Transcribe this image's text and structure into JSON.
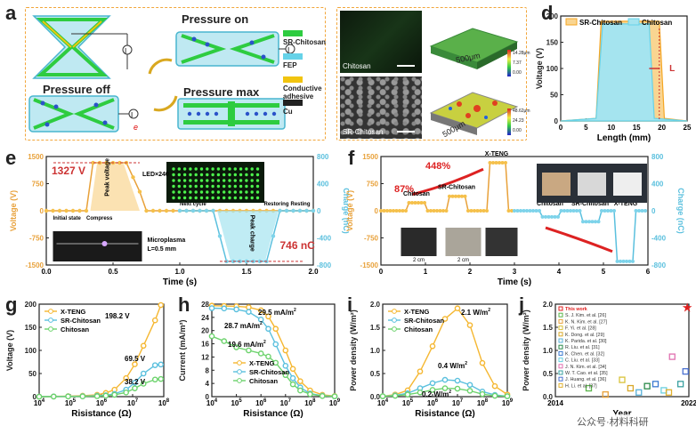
{
  "panel_letters": {
    "a": "a",
    "b": "b",
    "c": "c",
    "d": "d",
    "e": "e",
    "f": "f",
    "g": "g",
    "h": "h",
    "i": "i",
    "j": "j"
  },
  "a": {
    "pressure_on": "Pressure on",
    "pressure_off": "Pressure off",
    "pressure_max": "Pressure max",
    "e_symbol": "e",
    "legend": [
      {
        "label": "SR-Chitosan",
        "color": "#2ecc40"
      },
      {
        "label": "FEP",
        "color": "#66d2e8"
      },
      {
        "label": "Conductive adhesive",
        "color": "#f1c40f"
      },
      {
        "label": "Cu",
        "color": "#222"
      }
    ]
  },
  "b": {
    "label": "Chitosan",
    "scale": "500μm",
    "cbar": [
      "14.28μm",
      "7.37",
      "0.00"
    ]
  },
  "c": {
    "label": "SR-Chitosan",
    "scale": "500μm",
    "cbar": [
      "48.62μm",
      "24.23",
      "0.00"
    ]
  },
  "d": {
    "legend": [
      "SR-Chitosan",
      "Chitosan"
    ],
    "ylabel": "Voltage (V)",
    "xlabel": "Length (mm)",
    "marker": "L",
    "xticks": [
      "0",
      "5",
      "10",
      "15",
      "20",
      "25"
    ],
    "yticks": [
      "0",
      "50",
      "100",
      "150",
      "200"
    ],
    "colors": {
      "sr": "#f5a623",
      "ch": "#66d2e8"
    }
  },
  "e": {
    "annot_v": "1327 V",
    "annot_c": "746 nC",
    "peak_v": "Peak voltage",
    "peak_c": "Peak charge",
    "led": "LED×240",
    "initial": "Initial state",
    "compress": "Compress",
    "next": "Next cycle",
    "restoring": "Restoring",
    "resting": "Resting",
    "plasma": "Microplasma",
    "plasma_l": "L=0.5 mm",
    "ylabel": "Voltage (V)",
    "y2label": "Charge (nC)",
    "xlabel": "Time (s)",
    "yticks": [
      "1500",
      "750",
      "0",
      "-750",
      "-1500"
    ],
    "y2ticks": [
      "800",
      "400",
      "0",
      "-400",
      "-800"
    ],
    "xticks": [
      "0.0",
      "0.5",
      "1.0",
      "1.5",
      "2.0"
    ]
  },
  "f": {
    "p448": "448%",
    "p87": "87%",
    "labels_top": [
      "Chitosan",
      "SR-Chitosan",
      "X-TENG"
    ],
    "labels_bot": [
      "Chitosan",
      "SR-Chitosan",
      "X-TENG"
    ],
    "scale": "2 cm",
    "ylabel": "Voltage (V)",
    "y2label": "Charge (nC)",
    "xlabel": "Time (s)",
    "yticks": [
      "1500",
      "750",
      "0",
      "-750",
      "-1500"
    ],
    "y2ticks": [
      "800",
      "400",
      "0",
      "-400",
      "-800"
    ],
    "xticks": [
      "0",
      "1",
      "2",
      "3",
      "4",
      "5",
      "6"
    ]
  },
  "g": {
    "legend": [
      "X-TENG",
      "SR-Chitosan",
      "Chitosan"
    ],
    "annots": [
      "198.2 V",
      "69.5 V",
      "38.2 V"
    ],
    "ylabel": "Voltage (V)",
    "xlabel": "Risistance (Ω)",
    "yticks": [
      "0",
      "50",
      "100",
      "150",
      "200"
    ],
    "xticks": [
      "10",
      "10",
      "10",
      "10",
      "10"
    ],
    "xexp": [
      "4",
      "5",
      "6",
      "7",
      "8"
    ]
  },
  "h": {
    "legend": [
      "X-TENG",
      "SR-Chitosan",
      "Chitosan"
    ],
    "annots": [
      "29.5 mA/m",
      "28.7 mA/m",
      "19.6 mA/m"
    ],
    "ylabel": "Current (mA/m²)",
    "xlabel": "Risistance (Ω)",
    "yticks": [
      "0",
      "4",
      "8",
      "12",
      "16",
      "20",
      "24",
      "28"
    ],
    "xticks": [
      "10",
      "10",
      "10",
      "10",
      "10",
      "10"
    ],
    "xexp": [
      "4",
      "5",
      "6",
      "7",
      "8",
      "9"
    ]
  },
  "i": {
    "legend": [
      "X-TENG",
      "SR-Chitosan",
      "Chitosan"
    ],
    "annots": [
      "2.1 W/m",
      "0.4 W/m",
      "0.2 W/m"
    ],
    "ylabel": "Power density (W/m²)",
    "xlabel": "Risistance (Ω)",
    "yticks": [
      "0.0",
      "0.5",
      "1.0",
      "1.5",
      "2.0"
    ],
    "xticks": [
      "10",
      "10",
      "10",
      "10",
      "10",
      "10"
    ],
    "xexp": [
      "4",
      "5",
      "6",
      "7",
      "8",
      "9"
    ]
  },
  "j": {
    "legend": [
      "This work",
      "S. J. Kim. et al. [26]",
      "K. N. Kim. et al. [27]",
      "F. Yi. et al. [28]",
      "K. Dong. et al. [29]",
      "K. Parida. et al. [30]",
      "R. Liu. et al. [31]",
      "K. Chen. et al. [32]",
      "C. Liu. et al. [33]",
      "J. N. Kim. et al. [34]",
      "W. T. Cao. et al. [35]",
      "J. Huang. et al. [36]",
      "H. Li. et al. [37]"
    ],
    "legend_colors": [
      "#e02020",
      "#5ab54a",
      "#e8a13a",
      "#d9c23a",
      "#d9a82a",
      "#58b0d8",
      "#2a8a4a",
      "#3a7ad0",
      "#6ad0e0",
      "#e070b0",
      "#3aa0a0",
      "#4a70d0",
      "#e0b030"
    ],
    "ylabel": "Power density (W/m²)",
    "xlabel": "Year",
    "yticks": [
      "0.0",
      "0.5",
      "1.0",
      "1.5",
      "2.0"
    ],
    "xticks": [
      "2014",
      "2022"
    ]
  },
  "watermark": "公众号·材料科研"
}
